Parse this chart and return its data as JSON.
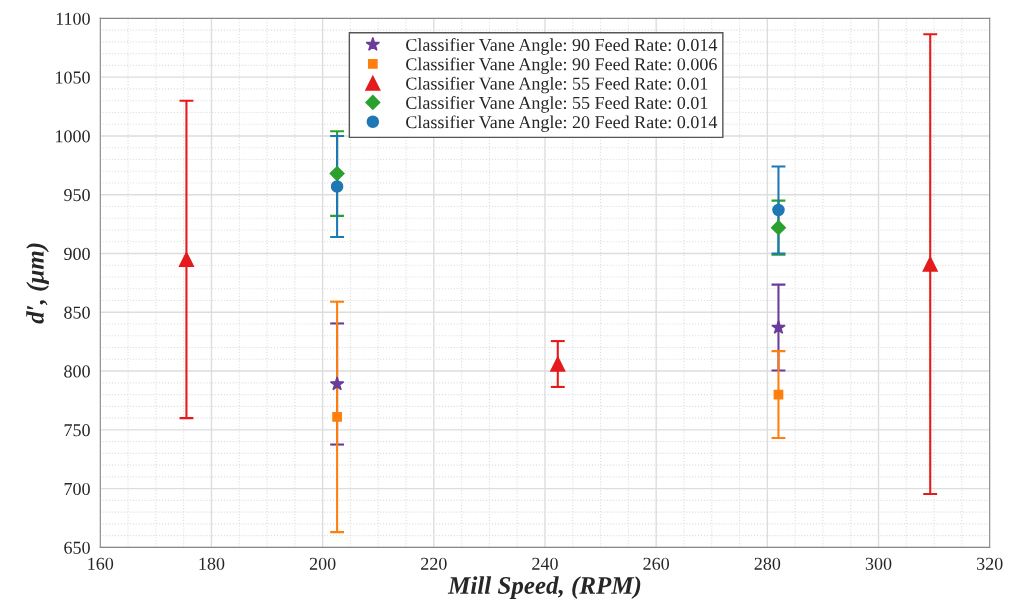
{
  "chart_data": {
    "type": "scatter",
    "xlabel": "Mill Speed, (RPM)",
    "ylabel": "d′, (μm)",
    "xlim": [
      160,
      320
    ],
    "xticks": [
      160,
      180,
      200,
      220,
      240,
      260,
      280,
      300,
      320
    ],
    "ylim": [
      650,
      1100
    ],
    "yticks": [
      650,
      700,
      750,
      800,
      850,
      900,
      950,
      1000,
      1050,
      1100
    ],
    "grid": true,
    "legend": "top",
    "series": [
      {
        "name": "Classifier Vane Angle: 90 Feed Rate: 0.014",
        "color": "#6a3d9a",
        "marker": "star",
        "x": [
          202.6,
          282
        ],
        "values": [
          789,
          837
        ],
        "errors": [
          51.5,
          36.5
        ]
      },
      {
        "name": "Classifier Vane Angle: 90 Feed Rate: 0.006",
        "color": "#ff7f0e",
        "marker": "square",
        "x": [
          202.6,
          282
        ],
        "values": [
          761,
          780
        ],
        "errors": [
          98,
          37
        ]
      },
      {
        "name": "Classifier Vane Angle: 55 Feed Rate: 0.01",
        "color": "#e41a1c",
        "marker": "triangle",
        "x": [
          175.5,
          242.3,
          309.3
        ],
        "values": [
          895,
          806,
          891
        ],
        "errors": [
          135,
          19.5,
          195.5
        ]
      },
      {
        "name": "Classifier Vane Angle: 55 Feed Rate: 0.01",
        "color": "#2ca02c",
        "marker": "diamond",
        "x": [
          202.6,
          282
        ],
        "values": [
          968,
          922
        ],
        "errors": [
          36,
          23
        ]
      },
      {
        "name": "Classifier Vane Angle: 20 Feed Rate: 0.014",
        "color": "#1f77b4",
        "marker": "circle",
        "x": [
          202.6,
          282
        ],
        "values": [
          957,
          937
        ],
        "errors": [
          43,
          37
        ]
      }
    ]
  }
}
